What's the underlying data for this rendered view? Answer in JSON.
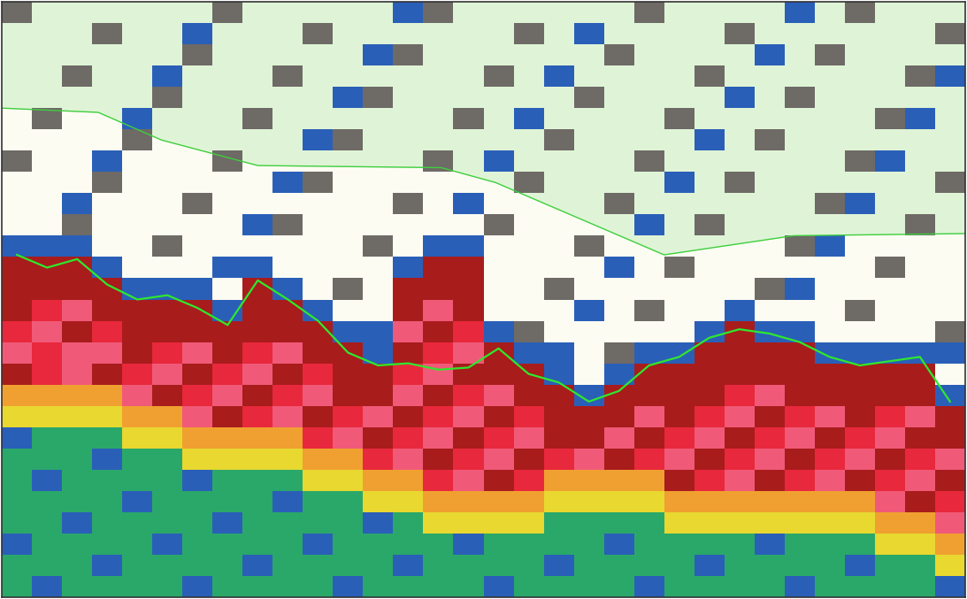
{
  "chart_data": {
    "type": "heatmap",
    "xlim": [
      0,
      32
    ],
    "ylim": [
      28,
      0
    ],
    "tick_labels": false,
    "grid": false,
    "levels": [
      0,
      1,
      2,
      3,
      4,
      5,
      6,
      7,
      8
    ],
    "colors": [
      "none",
      "#6e6a66",
      "#2a5fb8",
      "#2aa86a",
      "#e8d830",
      "#f0a030",
      "#f05a78",
      "#e8283c",
      "#a81c1c"
    ],
    "boundary": {
      "color": "#3fcf3f",
      "x": [
        0,
        3.2,
        5.3,
        8.5,
        14.6,
        16.4,
        22,
        26.3,
        32
      ],
      "y": [
        5.0,
        5.2,
        6.5,
        7.7,
        7.8,
        8.5,
        11.9,
        11.0,
        10.9
      ]
    },
    "bottom_line": {
      "color": "#2ee82e",
      "x": [
        0.5,
        1.5,
        2.5,
        3.5,
        4.5,
        5.5,
        6.5,
        7.5,
        8.5,
        9.5,
        10.5,
        11.5,
        12.5,
        13.5,
        14.5,
        15.5,
        16.5,
        17.5,
        18.5,
        19.5,
        20.5,
        21.5,
        22.5,
        23.5,
        24.5,
        25.5,
        26.5,
        27.5,
        28.5,
        29.5,
        30.5,
        31.5
      ],
      "y": [
        11.9,
        12.5,
        12.1,
        13.3,
        14,
        13.8,
        14.4,
        15.2,
        13.1,
        14,
        15,
        16.5,
        17.1,
        17.0,
        17.3,
        17.2,
        16.3,
        17.5,
        17.9,
        18.8,
        18.3,
        17.1,
        16.7,
        15.8,
        15.4,
        15.6,
        16,
        16.7,
        17.1,
        16.9,
        16.7,
        18.8
      ]
    },
    "cells": [
      [
        1,
        0,
        0,
        0,
        0,
        0,
        0,
        1,
        0,
        0,
        0,
        0,
        0,
        2,
        1,
        0,
        0,
        0,
        0,
        0,
        0,
        1,
        0,
        0,
        0,
        0,
        2,
        0,
        1,
        0,
        0,
        0
      ],
      [
        0,
        0,
        0,
        1,
        0,
        0,
        2,
        0,
        0,
        0,
        1,
        0,
        0,
        0,
        0,
        0,
        0,
        1,
        0,
        2,
        0,
        0,
        0,
        0,
        1,
        0,
        0,
        0,
        0,
        0,
        0,
        1
      ],
      [
        0,
        0,
        0,
        0,
        0,
        0,
        1,
        0,
        0,
        0,
        0,
        0,
        2,
        1,
        0,
        0,
        0,
        0,
        0,
        0,
        1,
        0,
        0,
        0,
        0,
        2,
        0,
        1,
        0,
        0,
        0,
        0
      ],
      [
        0,
        0,
        1,
        0,
        0,
        2,
        0,
        0,
        0,
        1,
        0,
        0,
        0,
        0,
        0,
        0,
        1,
        0,
        2,
        0,
        0,
        0,
        0,
        1,
        0,
        0,
        0,
        0,
        0,
        0,
        1,
        2
      ],
      [
        0,
        0,
        0,
        0,
        0,
        1,
        0,
        0,
        0,
        0,
        0,
        2,
        1,
        0,
        0,
        0,
        0,
        0,
        0,
        1,
        0,
        0,
        0,
        0,
        2,
        0,
        1,
        0,
        0,
        0,
        0,
        0
      ],
      [
        0,
        1,
        0,
        0,
        2,
        0,
        0,
        0,
        1,
        0,
        0,
        0,
        0,
        0,
        0,
        1,
        0,
        2,
        0,
        0,
        0,
        0,
        1,
        0,
        0,
        0,
        0,
        0,
        0,
        1,
        2,
        0
      ],
      [
        0,
        0,
        0,
        0,
        1,
        0,
        0,
        0,
        0,
        0,
        2,
        1,
        0,
        0,
        0,
        0,
        0,
        0,
        1,
        0,
        0,
        0,
        0,
        2,
        0,
        1,
        0,
        0,
        0,
        0,
        0,
        0
      ],
      [
        1,
        0,
        0,
        2,
        0,
        0,
        0,
        1,
        0,
        0,
        0,
        0,
        0,
        0,
        1,
        0,
        2,
        0,
        0,
        0,
        0,
        1,
        0,
        0,
        0,
        0,
        0,
        0,
        1,
        2,
        0,
        0
      ],
      [
        0,
        0,
        0,
        1,
        0,
        0,
        0,
        0,
        0,
        2,
        1,
        0,
        0,
        0,
        0,
        0,
        0,
        1,
        0,
        0,
        0,
        0,
        2,
        0,
        1,
        0,
        0,
        0,
        0,
        0,
        0,
        1
      ],
      [
        0,
        0,
        2,
        0,
        0,
        0,
        1,
        0,
        0,
        0,
        0,
        0,
        0,
        1,
        0,
        2,
        0,
        0,
        0,
        0,
        1,
        0,
        0,
        0,
        0,
        0,
        0,
        1,
        2,
        0,
        0,
        0
      ],
      [
        0,
        0,
        1,
        0,
        0,
        0,
        0,
        0,
        2,
        1,
        0,
        0,
        0,
        0,
        0,
        0,
        1,
        0,
        0,
        0,
        0,
        2,
        0,
        1,
        0,
        0,
        0,
        0,
        0,
        0,
        1,
        0
      ],
      [
        2,
        2,
        2,
        0,
        0,
        1,
        0,
        0,
        0,
        0,
        0,
        0,
        1,
        0,
        2,
        2,
        0,
        0,
        0,
        1,
        0,
        0,
        0,
        0,
        0,
        0,
        1,
        2,
        0,
        0,
        0,
        0
      ],
      [
        8,
        8,
        8,
        2,
        0,
        0,
        0,
        2,
        2,
        0,
        0,
        0,
        0,
        2,
        8,
        8,
        0,
        0,
        0,
        0,
        2,
        0,
        1,
        0,
        0,
        0,
        0,
        0,
        0,
        1,
        0,
        0
      ],
      [
        8,
        8,
        8,
        8,
        2,
        2,
        2,
        0,
        8,
        2,
        0,
        1,
        0,
        8,
        8,
        8,
        0,
        0,
        1,
        0,
        0,
        0,
        0,
        0,
        0,
        1,
        2,
        0,
        0,
        0,
        0,
        0
      ],
      [
        8,
        7,
        6,
        8,
        8,
        8,
        8,
        2,
        8,
        8,
        2,
        0,
        0,
        8,
        6,
        8,
        0,
        0,
        0,
        2,
        0,
        1,
        0,
        0,
        2,
        0,
        0,
        0,
        1,
        0,
        0,
        0
      ],
      [
        7,
        6,
        8,
        7,
        8,
        8,
        8,
        8,
        8,
        8,
        8,
        2,
        2,
        6,
        8,
        7,
        2,
        1,
        0,
        0,
        0,
        0,
        0,
        2,
        8,
        2,
        2,
        0,
        0,
        0,
        0,
        1
      ],
      [
        6,
        7,
        6,
        6,
        8,
        7,
        6,
        8,
        7,
        6,
        8,
        8,
        2,
        8,
        7,
        6,
        8,
        2,
        2,
        0,
        1,
        2,
        2,
        8,
        8,
        8,
        8,
        2,
        2,
        2,
        2,
        2
      ],
      [
        8,
        7,
        6,
        8,
        7,
        6,
        8,
        7,
        6,
        8,
        7,
        8,
        8,
        7,
        6,
        8,
        8,
        8,
        2,
        0,
        2,
        8,
        8,
        8,
        8,
        8,
        8,
        8,
        8,
        8,
        8,
        0
      ],
      [
        5,
        5,
        5,
        5,
        6,
        8,
        7,
        6,
        8,
        7,
        6,
        8,
        8,
        6,
        8,
        7,
        6,
        8,
        8,
        2,
        8,
        8,
        8,
        8,
        7,
        6,
        8,
        8,
        8,
        8,
        8,
        2
      ],
      [
        4,
        4,
        4,
        4,
        5,
        5,
        6,
        8,
        7,
        6,
        8,
        7,
        6,
        8,
        7,
        6,
        8,
        7,
        8,
        8,
        8,
        6,
        8,
        7,
        6,
        8,
        7,
        6,
        8,
        7,
        6,
        8
      ],
      [
        2,
        3,
        3,
        3,
        4,
        4,
        5,
        5,
        5,
        5,
        7,
        6,
        8,
        7,
        6,
        8,
        7,
        6,
        8,
        8,
        6,
        8,
        7,
        6,
        8,
        7,
        6,
        8,
        7,
        6,
        8,
        8
      ],
      [
        3,
        3,
        3,
        2,
        3,
        3,
        4,
        4,
        4,
        4,
        5,
        5,
        7,
        6,
        8,
        7,
        6,
        8,
        7,
        6,
        8,
        7,
        6,
        8,
        7,
        6,
        8,
        7,
        6,
        8,
        7,
        6
      ],
      [
        3,
        2,
        3,
        3,
        3,
        3,
        2,
        3,
        3,
        3,
        4,
        4,
        5,
        5,
        7,
        6,
        8,
        7,
        5,
        5,
        5,
        5,
        8,
        7,
        6,
        8,
        7,
        6,
        8,
        7,
        6,
        8
      ],
      [
        3,
        3,
        3,
        3,
        2,
        3,
        3,
        3,
        3,
        2,
        3,
        3,
        4,
        4,
        5,
        5,
        5,
        5,
        4,
        4,
        4,
        4,
        5,
        5,
        5,
        5,
        5,
        5,
        5,
        6,
        8,
        7
      ],
      [
        3,
        3,
        2,
        3,
        3,
        3,
        3,
        2,
        3,
        3,
        3,
        3,
        2,
        3,
        4,
        4,
        4,
        4,
        3,
        3,
        3,
        3,
        4,
        4,
        4,
        4,
        4,
        4,
        4,
        5,
        5,
        6
      ],
      [
        2,
        3,
        3,
        3,
        3,
        2,
        3,
        3,
        3,
        3,
        2,
        3,
        3,
        3,
        3,
        2,
        3,
        3,
        3,
        3,
        2,
        3,
        3,
        3,
        3,
        2,
        3,
        3,
        3,
        4,
        4,
        5
      ],
      [
        3,
        3,
        3,
        2,
        3,
        3,
        3,
        3,
        2,
        3,
        3,
        3,
        3,
        2,
        3,
        3,
        3,
        3,
        2,
        3,
        3,
        3,
        3,
        2,
        3,
        3,
        3,
        3,
        2,
        3,
        3,
        4
      ],
      [
        3,
        2,
        3,
        3,
        3,
        3,
        2,
        3,
        3,
        3,
        3,
        2,
        3,
        3,
        3,
        3,
        2,
        3,
        3,
        3,
        3,
        2,
        3,
        3,
        3,
        3,
        2,
        3,
        3,
        3,
        3,
        2
      ]
    ]
  }
}
